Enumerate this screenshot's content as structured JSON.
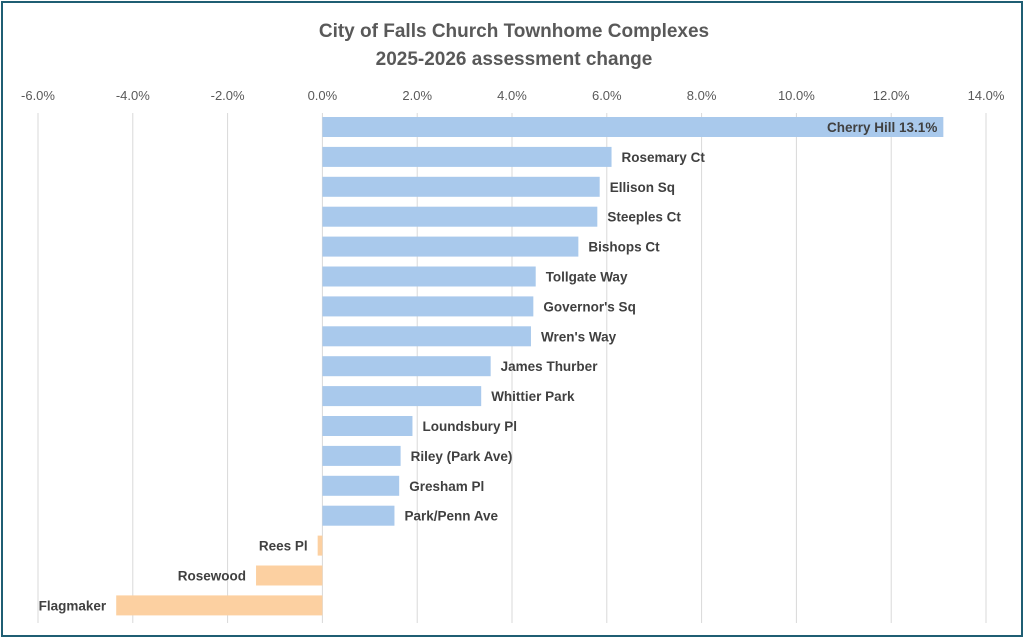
{
  "chart_data": {
    "type": "bar",
    "orientation": "horizontal",
    "title": "City of Falls Church Townhome Complexes",
    "subtitle": "2025-2026 assessment change",
    "xlim": [
      -6.0,
      14.0
    ],
    "x_ticks": [
      "-6.0%",
      "-4.0%",
      "-2.0%",
      "0.0%",
      "2.0%",
      "4.0%",
      "6.0%",
      "8.0%",
      "10.0%",
      "12.0%",
      "14.0%"
    ],
    "x_tick_values": [
      -6,
      -4,
      -2,
      0,
      2,
      4,
      6,
      8,
      10,
      12,
      14
    ],
    "gridlines": true,
    "legend": false,
    "colors": {
      "positive": "#a9c9ec",
      "negative": "#fcd0a1"
    },
    "categories": [
      "Cherry Hill",
      "Rosemary Ct",
      "Ellison Sq",
      "Steeples Ct",
      "Bishops Ct",
      "Tollgate Way",
      "Governor's Sq",
      "Wren's Way",
      "James Thurber",
      "Whittier Park",
      "Loundsbury Pl",
      "Riley (Park Ave)",
      "Gresham Pl",
      "Park/Penn Ave",
      "Rees Pl",
      "Rosewood",
      "Flagmaker"
    ],
    "labels": [
      "Cherry Hill 13.1%",
      "Rosemary Ct",
      "Ellison Sq",
      "Steeples Ct",
      "Bishops Ct",
      "Tollgate Way",
      "Governor's Sq",
      "Wren's Way",
      "James Thurber",
      "Whittier Park",
      "Loundsbury Pl",
      "Riley (Park Ave)",
      "Gresham Pl",
      "Park/Penn Ave",
      "Rees Pl",
      "Rosewood",
      "Flagmaker"
    ],
    "values": [
      13.1,
      6.1,
      5.85,
      5.8,
      5.4,
      4.5,
      4.45,
      4.4,
      3.55,
      3.35,
      1.9,
      1.65,
      1.62,
      1.52,
      -0.1,
      -1.4,
      -4.35
    ]
  }
}
